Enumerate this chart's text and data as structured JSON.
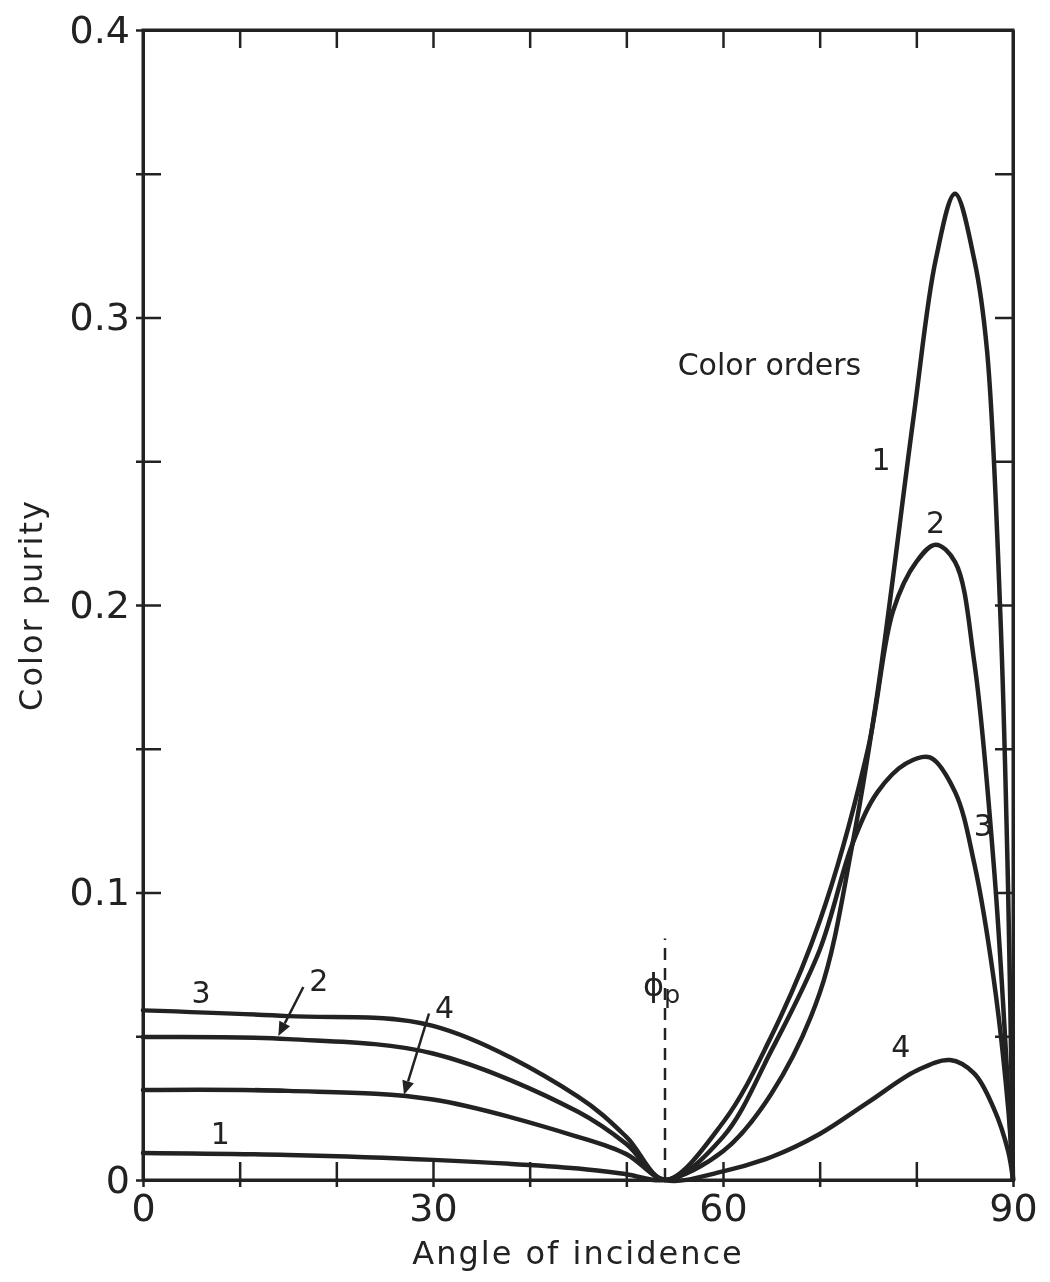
{
  "chart_data": {
    "type": "line",
    "xlabel": "Angle of incidence",
    "ylabel": "Color purity",
    "xlim": [
      0,
      90
    ],
    "ylim": [
      0,
      0.4
    ],
    "xticks": [
      0,
      {
        "value": 10,
        "label": null
      },
      {
        "value": 20,
        "label": null
      },
      30,
      {
        "value": 40,
        "label": null
      },
      {
        "value": 50,
        "label": null
      },
      60,
      {
        "value": 70,
        "label": null
      },
      {
        "value": 80,
        "label": null
      },
      90
    ],
    "yticks": [
      0,
      {
        "value": 0.05,
        "label": null
      },
      0.1,
      {
        "value": 0.15,
        "label": null
      },
      0.2,
      {
        "value": 0.25,
        "label": null
      },
      0.3,
      {
        "value": 0.35,
        "label": null
      },
      0.4
    ],
    "grid": false,
    "marker": "none",
    "line_style": "solid",
    "series": [
      {
        "name": "1",
        "color": "#222222",
        "x": [
          0,
          15,
          30,
          45,
          50,
          54,
          60,
          65,
          70,
          73.4,
          76,
          79.7,
          82,
          84,
          86,
          87.3,
          88.7,
          89.5,
          90
        ],
        "values": [
          0.0094,
          0.0087,
          0.007,
          0.004,
          0.002,
          0,
          0.01,
          0.03,
          0.065,
          0.117,
          0.17,
          0.265,
          0.32,
          0.343,
          0.32,
          0.289,
          0.196,
          0.1,
          0
        ]
      },
      {
        "name": "2",
        "color": "#222222",
        "x": [
          0,
          15,
          30,
          45,
          50,
          54,
          60,
          65,
          70,
          75,
          77.6,
          80,
          82,
          84,
          86,
          88,
          89,
          90
        ],
        "values": [
          0.0497,
          0.049,
          0.044,
          0.0237,
          0.0125,
          0,
          0.02,
          0.05,
          0.09,
          0.15,
          0.198,
          0.215,
          0.221,
          0.215,
          0.18,
          0.11,
          0.06,
          0
        ]
      },
      {
        "name": "3",
        "color": "#222222",
        "x": [
          0,
          15,
          30,
          45,
          50,
          54,
          60,
          65,
          70,
          73.4,
          76,
          79,
          81.4,
          84,
          86,
          88,
          89.5,
          90
        ],
        "values": [
          0.059,
          0.057,
          0.0536,
          0.029,
          0.015,
          0,
          0.015,
          0.045,
          0.08,
          0.117,
          0.135,
          0.145,
          0.147,
          0.135,
          0.11,
          0.07,
          0.025,
          0
        ]
      },
      {
        "name": "4",
        "color": "#222222",
        "x": [
          0,
          15,
          30,
          45,
          50,
          54,
          60,
          65,
          70,
          75,
          80,
          83.5,
          86,
          88,
          89.5,
          90
        ],
        "values": [
          0.0313,
          0.031,
          0.028,
          0.015,
          0.009,
          0,
          0.003,
          0.008,
          0.016,
          0.027,
          0.038,
          0.0417,
          0.037,
          0.025,
          0.01,
          0
        ]
      }
    ],
    "ref_lines": [
      {
        "axis": "x",
        "value": 54,
        "label": "ϕ$_{p}$",
        "line_style": "dashed"
      }
    ],
    "annotations": [
      "Color orders"
    ]
  }
}
